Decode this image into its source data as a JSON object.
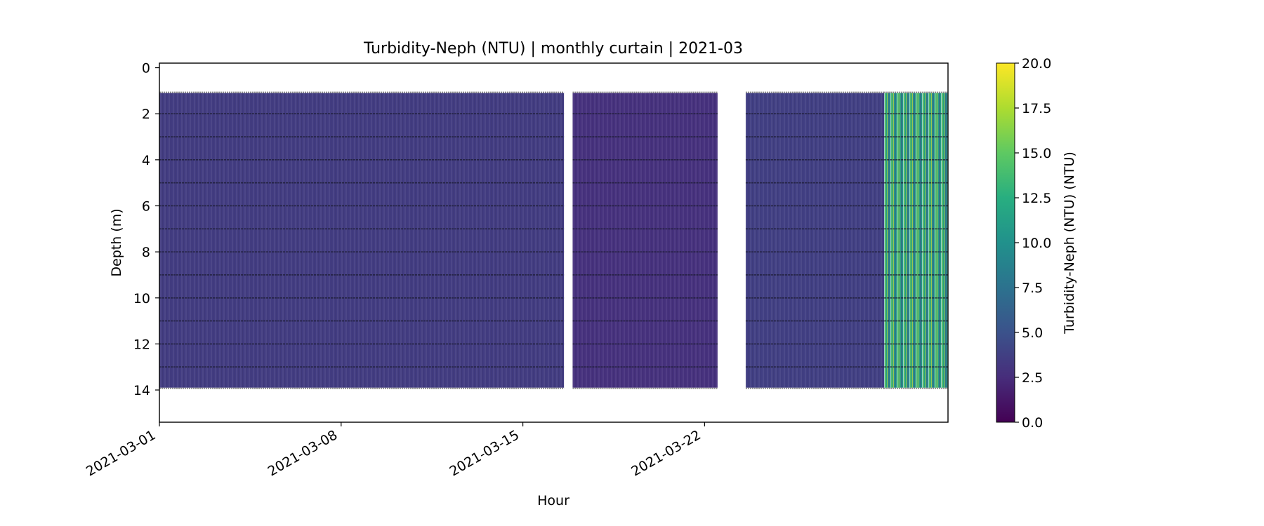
{
  "chart_data": {
    "type": "heatmap",
    "title": "Turbidity-Neph (NTU) | monthly curtain | 2021-03",
    "xlabel": "Hour",
    "ylabel": "Depth (m)",
    "x_range": [
      "2021-03-01",
      "2021-03-31T09:00"
    ],
    "x_ticks": [
      "2021-03-01",
      "2021-03-08",
      "2021-03-15",
      "2021-03-22"
    ],
    "y_range": [
      15.4,
      -0.2
    ],
    "y_inverted": true,
    "y_ticks": [
      0,
      2,
      4,
      6,
      8,
      10,
      12,
      14
    ],
    "grid": false,
    "colormap": "viridis",
    "colorbar": {
      "label": "Turbidity-Neph (NTU) (NTU)",
      "range": [
        0,
        20
      ],
      "ticks": [
        "0.0",
        "2.5",
        "5.0",
        "7.5",
        "10.0",
        "12.5",
        "15.0",
        "17.5",
        "20.0"
      ]
    },
    "depth_top_m": 1.1,
    "depth_bottom_m": 13.9,
    "sensor_depth_lines_m": [
      2,
      3,
      4,
      5,
      6,
      7,
      8,
      9,
      10,
      11,
      12,
      13
    ],
    "data_gaps": [
      {
        "start": "2021-03-16T14:00",
        "end": "2021-03-16T22:00"
      },
      {
        "start": "2021-03-22T12:00",
        "end": "2021-03-23T14:00"
      }
    ],
    "segments": [
      {
        "start": "2021-03-01",
        "end": "2021-03-16T14:00",
        "turbidity_ntu": 3.5
      },
      {
        "start": "2021-03-16T22:00",
        "end": "2021-03-22T12:00",
        "turbidity_ntu": 2.8
      },
      {
        "start": "2021-03-23T14:00",
        "end": "2021-03-28T22:00",
        "turbidity_ntu": 3.7
      },
      {
        "start": "2021-03-28T22:00",
        "end": "2021-03-31T09:00",
        "turbidity_ntu": 11.0
      }
    ]
  }
}
